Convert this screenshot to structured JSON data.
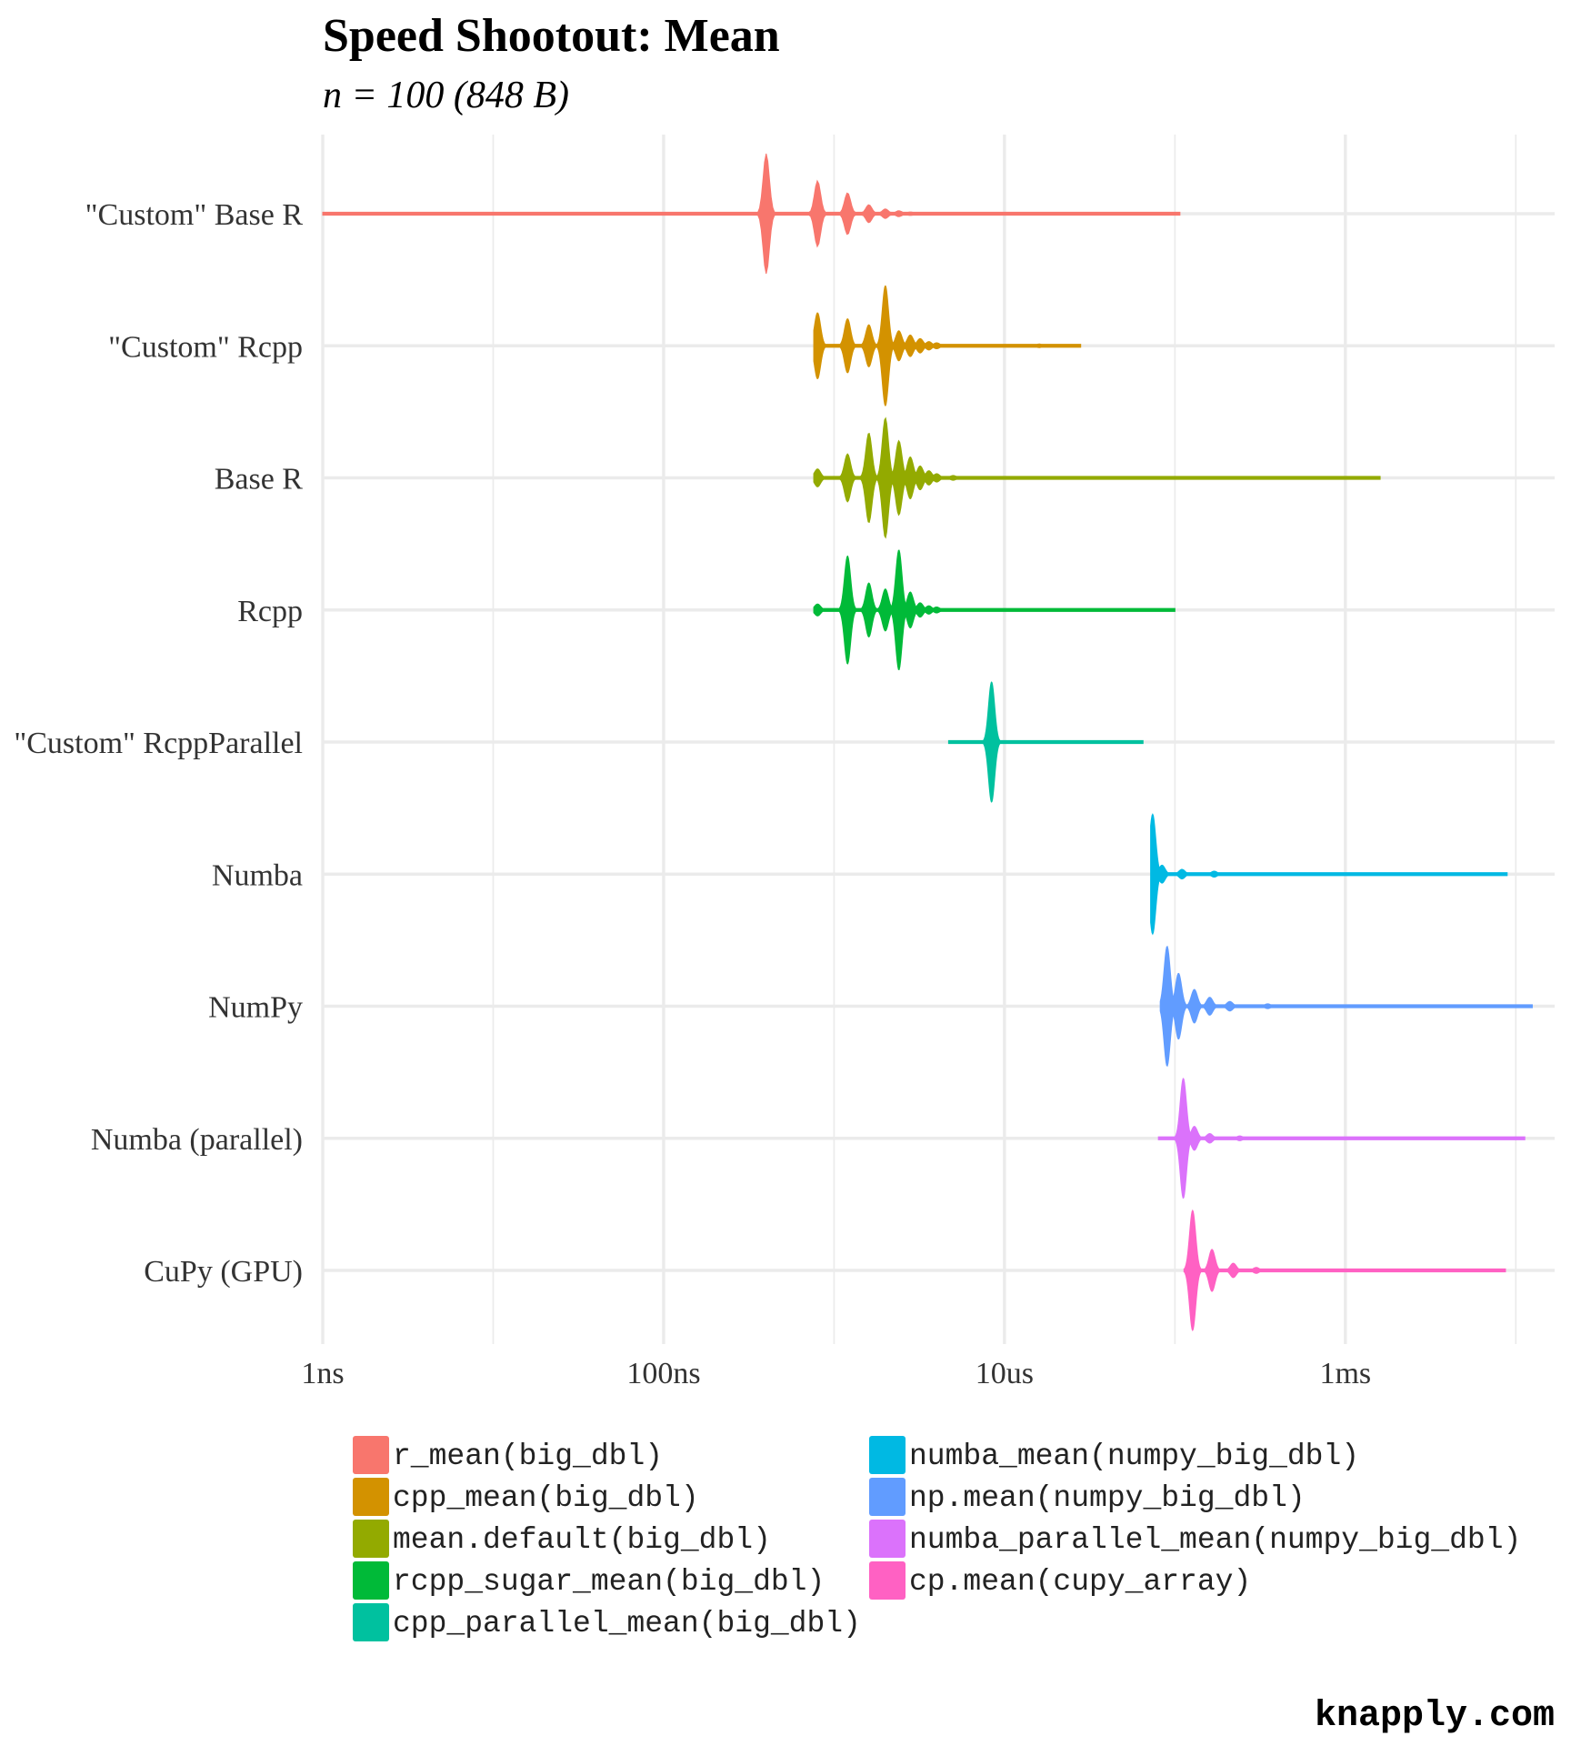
{
  "chart_data": {
    "type": "violin",
    "title": "Speed Shootout: Mean",
    "subtitle": "n = 100 (848 B)",
    "xlabel": "",
    "ylabel": "",
    "x_scale": "log10",
    "x_unit": "seconds",
    "xlim": [
      1e-09,
      0.0169
    ],
    "x_ticks": [
      {
        "value": 1e-09,
        "label": "1ns"
      },
      {
        "value": 1e-07,
        "label": "100ns"
      },
      {
        "value": 1e-05,
        "label": "10us"
      },
      {
        "value": 0.001,
        "label": "1ms"
      }
    ],
    "grid": true,
    "legend_position": "bottom",
    "categories": [
      "\"Custom\" Base R",
      "\"Custom\" Rcpp",
      "Base R",
      "Rcpp",
      "\"Custom\" RcppParallel",
      "Numba",
      "NumPy",
      "Numba (parallel)",
      "CuPy (GPU)"
    ],
    "series": [
      {
        "name": "r_mean(big_dbl)",
        "category": "\"Custom\" Base R",
        "color": "#F8766D",
        "min": 1e-09,
        "max": 0.000107,
        "modes": [
          [
            4e-07,
            1.0
          ],
          [
            8e-07,
            0.55
          ],
          [
            1.2e-06,
            0.35
          ],
          [
            1.6e-06,
            0.15
          ],
          [
            2e-06,
            0.08
          ],
          [
            2.4e-06,
            0.05
          ],
          [
            2.8e-06,
            0.03
          ]
        ]
      },
      {
        "name": "cpp_mean(big_dbl)",
        "category": "\"Custom\" Rcpp",
        "color": "#D39200",
        "min": 7.6e-07,
        "max": 2.8e-05,
        "modes": [
          [
            8e-07,
            0.55
          ],
          [
            1.2e-06,
            0.45
          ],
          [
            1.6e-06,
            0.35
          ],
          [
            2e-06,
            1.0
          ],
          [
            2.4e-06,
            0.25
          ],
          [
            2.8e-06,
            0.18
          ],
          [
            3.2e-06,
            0.12
          ],
          [
            3.6e-06,
            0.07
          ],
          [
            4e-06,
            0.05
          ],
          [
            1.6e-05,
            0.03
          ]
        ]
      },
      {
        "name": "mean.default(big_dbl)",
        "category": "Base R",
        "color": "#93AA00",
        "min": 7.6e-07,
        "max": 0.0016,
        "modes": [
          [
            8e-07,
            0.15
          ],
          [
            1.2e-06,
            0.4
          ],
          [
            1.6e-06,
            0.75
          ],
          [
            2e-06,
            1.0
          ],
          [
            2.4e-06,
            0.62
          ],
          [
            2.8e-06,
            0.35
          ],
          [
            3.2e-06,
            0.2
          ],
          [
            3.6e-06,
            0.12
          ],
          [
            4e-06,
            0.07
          ],
          [
            5e-06,
            0.04
          ]
        ]
      },
      {
        "name": "rcpp_sugar_mean(big_dbl)",
        "category": "Rcpp",
        "color": "#00BA38",
        "min": 7.6e-07,
        "max": 0.0001,
        "modes": [
          [
            8e-07,
            0.1
          ],
          [
            1.2e-06,
            0.9
          ],
          [
            1.6e-06,
            0.45
          ],
          [
            2e-06,
            0.35
          ],
          [
            2.4e-06,
            1.0
          ],
          [
            2.8e-06,
            0.3
          ],
          [
            3.2e-06,
            0.12
          ],
          [
            3.6e-06,
            0.07
          ],
          [
            4e-06,
            0.05
          ]
        ]
      },
      {
        "name": "cpp_parallel_mean(big_dbl)",
        "category": "\"Custom\" RcppParallel",
        "color": "#00C19F",
        "min": 4.7e-06,
        "max": 6.5e-05,
        "modes": [
          [
            8.4e-06,
            1.0
          ]
        ]
      },
      {
        "name": "numba_mean(numpy_big_dbl)",
        "category": "Numba",
        "color": "#00B9E3",
        "min": 7.2e-05,
        "max": 0.0089,
        "modes": [
          [
            7.4e-05,
            1.0
          ],
          [
            8.4e-05,
            0.15
          ],
          [
            0.00011,
            0.08
          ],
          [
            0.00017,
            0.05
          ]
        ]
      },
      {
        "name": "np.mean(numpy_big_dbl)",
        "category": "NumPy",
        "color": "#619CFF",
        "min": 8.2e-05,
        "max": 0.0125,
        "modes": [
          [
            9e-05,
            1.0
          ],
          [
            0.000105,
            0.55
          ],
          [
            0.00013,
            0.28
          ],
          [
            0.00016,
            0.15
          ],
          [
            0.00021,
            0.08
          ],
          [
            0.00035,
            0.04
          ]
        ]
      },
      {
        "name": "numba_parallel_mean(numpy_big_dbl)",
        "category": "Numba (parallel)",
        "color": "#DB72FB",
        "min": 8e-05,
        "max": 0.0113,
        "modes": [
          [
            0.000112,
            1.0
          ],
          [
            0.00013,
            0.2
          ],
          [
            0.00016,
            0.08
          ],
          [
            0.00024,
            0.04
          ]
        ]
      },
      {
        "name": "cp.mean(cupy_array)",
        "category": "CuPy (GPU)",
        "color": "#FF61C3",
        "min": 0.000113,
        "max": 0.0087,
        "modes": [
          [
            0.000127,
            1.0
          ],
          [
            0.000165,
            0.35
          ],
          [
            0.00022,
            0.12
          ],
          [
            0.0003,
            0.05
          ]
        ]
      }
    ]
  },
  "footer": {
    "text": "knapply.com"
  }
}
